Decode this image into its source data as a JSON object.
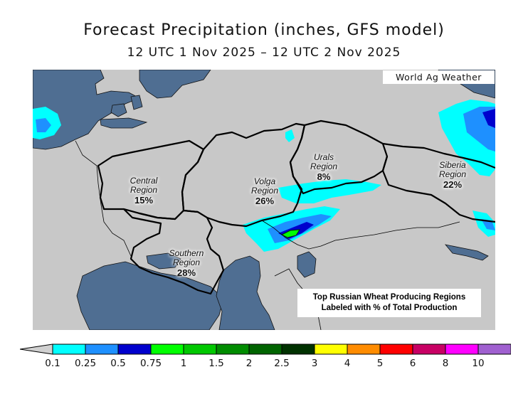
{
  "header": {
    "title": "Forecast Precipitation (inches, GFS model)",
    "valid_period": "12 UTC 1 Nov 2025 – 12 UTC 2 Nov 2025"
  },
  "credit": "World Ag Weather",
  "regions": [
    {
      "name_line1": "Central",
      "name_line2": "Region",
      "percent": "15%"
    },
    {
      "name_line1": "Volga",
      "name_line2": "Region",
      "percent": "26%"
    },
    {
      "name_line1": "Urals",
      "name_line2": "Region",
      "percent": "8%"
    },
    {
      "name_line1": "Siberia",
      "name_line2": "Region",
      "percent": "22%"
    },
    {
      "name_line1": "Southern",
      "name_line2": "Region",
      "percent": "28%"
    }
  ],
  "note": {
    "line1": "Top Russian Wheat Producing Regions",
    "line2": "Labeled with % of Total Production"
  },
  "legend": {
    "labels": [
      "0.1",
      "0.25",
      "0.5",
      "0.75",
      "1",
      "1.5",
      "2",
      "2.5",
      "3",
      "4",
      "5",
      "6",
      "8",
      "10"
    ],
    "colors": [
      "#00ffff",
      "#1e90ff",
      "#0000cd",
      "#00ff00",
      "#00c800",
      "#008c00",
      "#006400",
      "#003200",
      "#ffff00",
      "#ff8c00",
      "#ff0000",
      "#c80064",
      "#ff00ff",
      "#a060d0"
    ]
  },
  "colors": {
    "land": "#c8c8c8",
    "water": "#4f6e92",
    "precip_light": "#00ffff",
    "precip_moderate": "#1e90ff",
    "precip_heavy": "#0000cd",
    "precip_green": "#00ff00"
  }
}
